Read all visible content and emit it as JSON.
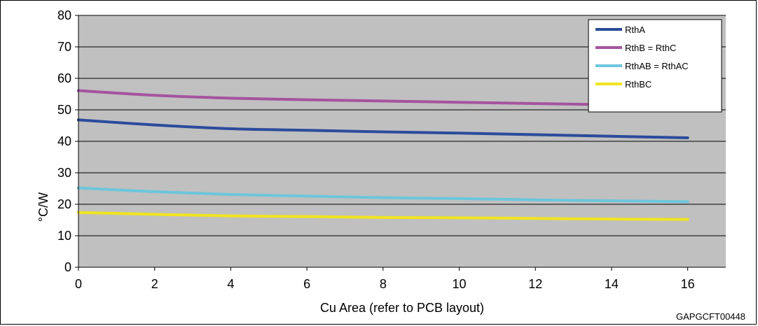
{
  "chart_data": {
    "type": "line",
    "title": "",
    "xlabel": "Cu Area (refer to PCB layout)",
    "ylabel": "°C/W",
    "xlim": [
      0,
      17
    ],
    "ylim": [
      0,
      80
    ],
    "x_ticks": [
      0,
      2,
      4,
      6,
      8,
      10,
      12,
      14,
      16
    ],
    "y_ticks": [
      0,
      10,
      20,
      30,
      40,
      50,
      60,
      70,
      80
    ],
    "grid": "horizontal",
    "legend_position": "top-right",
    "series": [
      {
        "name": "RthA",
        "color": "#2b4b9b",
        "x": [
          0,
          2,
          4,
          6,
          8,
          10,
          12,
          14,
          16
        ],
        "y": [
          46.8,
          45.2,
          44.0,
          43.5,
          43.0,
          42.6,
          42.1,
          41.6,
          41.1
        ]
      },
      {
        "name": "RthB = RthC",
        "color": "#a5549e",
        "x": [
          0,
          2,
          4,
          6,
          8,
          10,
          12,
          14,
          16
        ],
        "y": [
          56.1,
          54.6,
          53.7,
          53.2,
          52.8,
          52.4,
          52.0,
          51.6,
          51.2
        ]
      },
      {
        "name": "RthAB = RthAC",
        "color": "#6cc6dc",
        "x": [
          0,
          2,
          4,
          6,
          8,
          10,
          12,
          14,
          16
        ],
        "y": [
          25.2,
          24.0,
          23.1,
          22.6,
          22.1,
          21.8,
          21.4,
          21.1,
          20.8
        ]
      },
      {
        "name": "RthBC",
        "color": "#f0e420",
        "x": [
          0,
          2,
          4,
          6,
          8,
          10,
          12,
          14,
          16
        ],
        "y": [
          17.4,
          16.8,
          16.3,
          16.1,
          15.8,
          15.7,
          15.5,
          15.3,
          15.2
        ]
      }
    ]
  },
  "figure_code": "GAPGCFT00448",
  "colors": {
    "plot_background": "#c0c0c0",
    "gridline": "#000000"
  }
}
